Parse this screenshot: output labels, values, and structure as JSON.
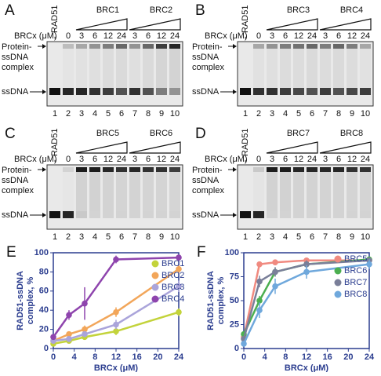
{
  "gels": [
    {
      "label": "A",
      "minus": "-",
      "rad51": "RAD51",
      "conc_label": "BRCx (μM)",
      "zero": "0",
      "groups": [
        {
          "name": "BRC1",
          "concs": [
            "3",
            "6",
            "12",
            "24"
          ]
        },
        {
          "name": "BRC2",
          "concs": [
            "3",
            "6",
            "12",
            "24"
          ]
        }
      ],
      "complex_label": [
        "Protein-",
        "ssDNA",
        "complex"
      ],
      "ssdna_label": "ssDNA",
      "lanes": [
        "1",
        "2",
        "3",
        "4",
        "5",
        "6",
        "7",
        "8",
        "9",
        "10"
      ]
    },
    {
      "label": "B",
      "minus": "-",
      "rad51": "RAD51",
      "conc_label": "BRCx (μM)",
      "zero": "0",
      "groups": [
        {
          "name": "BRC3",
          "concs": [
            "3",
            "6",
            "12",
            "24"
          ]
        },
        {
          "name": "BRC4",
          "concs": [
            "3",
            "6",
            "12",
            "24"
          ]
        }
      ],
      "complex_label": [
        "Protein-",
        "ssDNA",
        "complex"
      ],
      "ssdna_label": "ssDNA",
      "lanes": [
        "1",
        "2",
        "3",
        "4",
        "5",
        "6",
        "7",
        "8",
        "9",
        "10"
      ]
    },
    {
      "label": "C",
      "minus": "-",
      "rad51": "RAD51",
      "conc_label": "BRCx (μM)",
      "zero": "0",
      "groups": [
        {
          "name": "BRC5",
          "concs": [
            "3",
            "6",
            "12",
            "24"
          ]
        },
        {
          "name": "BRC6",
          "concs": [
            "3",
            "6",
            "12",
            "24"
          ]
        }
      ],
      "complex_label": [
        "Protein-",
        "ssDNA",
        "complex"
      ],
      "ssdna_label": "ssDNA",
      "lanes": [
        "1",
        "2",
        "3",
        "4",
        "5",
        "6",
        "7",
        "8",
        "9",
        "10"
      ]
    },
    {
      "label": "D",
      "minus": "-",
      "rad51": "RAD51",
      "conc_label": "BRCx (μM)",
      "zero": "0",
      "groups": [
        {
          "name": "BRC7",
          "concs": [
            "3",
            "6",
            "12",
            "24"
          ]
        },
        {
          "name": "BRC8",
          "concs": [
            "3",
            "6",
            "12",
            "24"
          ]
        }
      ],
      "complex_label": [
        "Protein-",
        "ssDNA",
        "complex"
      ],
      "ssdna_label": "ssDNA",
      "lanes": [
        "1",
        "2",
        "3",
        "4",
        "5",
        "6",
        "7",
        "8",
        "9",
        "10"
      ]
    }
  ],
  "chart_data": [
    {
      "type": "line",
      "panel": "E",
      "xlabel": "BRCx (μM)",
      "ylabel": [
        "RAD51-ssDNA",
        "complex, %"
      ],
      "x": [
        0,
        3,
        6,
        12,
        24
      ],
      "xlim": [
        0,
        24
      ],
      "xticks": [
        0,
        4,
        8,
        12,
        16,
        20,
        24
      ],
      "ylim": [
        0,
        100
      ],
      "yticks": [
        0,
        20,
        40,
        60,
        80,
        100
      ],
      "legend": "upper right",
      "series": [
        {
          "name": "BRC1",
          "color": "#c3d33b",
          "values": [
            5,
            8,
            12,
            18,
            38
          ],
          "errors": [
            2,
            2,
            3,
            4,
            4
          ]
        },
        {
          "name": "BRC2",
          "color": "#f2a65a",
          "values": [
            8,
            15,
            20,
            38,
            83
          ],
          "errors": [
            2,
            3,
            4,
            5,
            4
          ]
        },
        {
          "name": "BRC3",
          "color": "#aaa4da",
          "values": [
            8,
            10,
            15,
            25,
            65
          ],
          "errors": [
            2,
            3,
            3,
            5,
            6
          ]
        },
        {
          "name": "BRC4",
          "color": "#8e44ad",
          "values": [
            12,
            35,
            47,
            93,
            95
          ],
          "errors": [
            3,
            5,
            17,
            4,
            3
          ]
        }
      ]
    },
    {
      "type": "line",
      "panel": "F",
      "xlabel": "BRCx (μM)",
      "ylabel": [
        "RAD51-ssDNA",
        "complex, %"
      ],
      "x": [
        0,
        3,
        6,
        12,
        24
      ],
      "xlim": [
        0,
        24
      ],
      "xticks": [
        0,
        4,
        8,
        12,
        16,
        20,
        24
      ],
      "ylim": [
        0,
        100
      ],
      "yticks": [
        0,
        25,
        50,
        75,
        100
      ],
      "legend": "right",
      "series": [
        {
          "name": "BRC5",
          "color": "#f08a80",
          "values": [
            12,
            88,
            90,
            92,
            92
          ],
          "errors": [
            2,
            3,
            3,
            2,
            2
          ]
        },
        {
          "name": "BRC6",
          "color": "#4caf50",
          "values": [
            15,
            50,
            80,
            88,
            93
          ],
          "errors": [
            3,
            5,
            4,
            3,
            2
          ]
        },
        {
          "name": "BRC7",
          "color": "#7a7f99",
          "values": [
            10,
            70,
            80,
            88,
            92
          ],
          "errors": [
            3,
            6,
            5,
            4,
            3
          ]
        },
        {
          "name": "BRC8",
          "color": "#6fa8dc",
          "values": [
            5,
            40,
            65,
            80,
            88
          ],
          "errors": [
            2,
            8,
            8,
            7,
            5
          ]
        }
      ]
    }
  ]
}
